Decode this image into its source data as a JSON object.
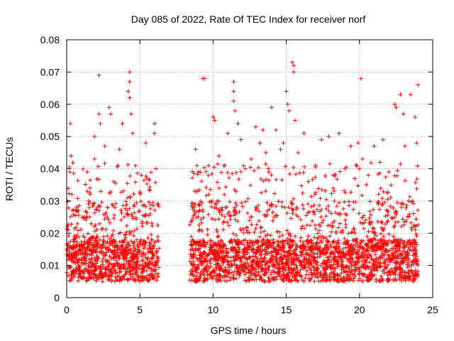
{
  "chart_data": {
    "type": "scatter",
    "title": "Day 085 of 2022, Rate Of TEC Index for receiver norf",
    "xlabel": "GPS time / hours",
    "ylabel": "ROTI / TECUs",
    "xlim": [
      0,
      25
    ],
    "ylim": [
      0,
      0.08
    ],
    "grid": true,
    "x_ticks": [
      0,
      5,
      10,
      15,
      20,
      25
    ],
    "x_tick_labels": [
      "0",
      "5",
      "10",
      "15",
      "20",
      "25"
    ],
    "y_ticks": [
      0,
      0.01,
      0.02,
      0.03,
      0.04,
      0.05,
      0.06,
      0.07,
      0.08
    ],
    "y_tick_labels": [
      "0",
      "0.01",
      "0.02",
      "0.03",
      "0.04",
      "0.05",
      "0.06",
      "0.07",
      "0.08"
    ],
    "marker": "+",
    "color": "#ff0000",
    "series": [
      {
        "name": "ROTI",
        "segments": [
          [
            0.0,
            6.3
          ],
          [
            8.4,
            24.0
          ]
        ],
        "points": [
          [
            0.1,
            0.021
          ],
          [
            0.2,
            0.039
          ],
          [
            0.25,
            0.054
          ],
          [
            0.3,
            0.044
          ],
          [
            0.35,
            0.032
          ],
          [
            1.2,
            0.025
          ],
          [
            1.4,
            0.039
          ],
          [
            1.6,
            0.034
          ],
          [
            1.9,
            0.043
          ],
          [
            1.9,
            0.05
          ],
          [
            2.2,
            0.069
          ],
          [
            2.2,
            0.057
          ],
          [
            2.3,
            0.054
          ],
          [
            2.6,
            0.047
          ],
          [
            2.9,
            0.059
          ],
          [
            3.0,
            0.057
          ],
          [
            3.2,
            0.036
          ],
          [
            3.5,
            0.041
          ],
          [
            3.6,
            0.046
          ],
          [
            3.8,
            0.054
          ],
          [
            4.2,
            0.064
          ],
          [
            4.3,
            0.07
          ],
          [
            4.3,
            0.067
          ],
          [
            4.3,
            0.062
          ],
          [
            4.4,
            0.057
          ],
          [
            4.5,
            0.051
          ],
          [
            4.7,
            0.041
          ],
          [
            5.1,
            0.038
          ],
          [
            5.4,
            0.048
          ],
          [
            6.0,
            0.054
          ],
          [
            6.0,
            0.051
          ],
          [
            6.1,
            0.04
          ],
          [
            6.2,
            0.029
          ],
          [
            8.6,
            0.028
          ],
          [
            8.8,
            0.046
          ],
          [
            8.9,
            0.041
          ],
          [
            9.3,
            0.068
          ],
          [
            9.4,
            0.068
          ],
          [
            9.7,
            0.032
          ],
          [
            10.0,
            0.056
          ],
          [
            10.1,
            0.055
          ],
          [
            10.4,
            0.044
          ],
          [
            10.8,
            0.041
          ],
          [
            11.0,
            0.051
          ],
          [
            11.4,
            0.067
          ],
          [
            11.4,
            0.064
          ],
          [
            11.4,
            0.061
          ],
          [
            11.5,
            0.058
          ],
          [
            11.7,
            0.054
          ],
          [
            11.9,
            0.049
          ],
          [
            12.2,
            0.04
          ],
          [
            12.6,
            0.043
          ],
          [
            12.9,
            0.053
          ],
          [
            13.2,
            0.048
          ],
          [
            13.4,
            0.052
          ],
          [
            13.6,
            0.045
          ],
          [
            13.8,
            0.039
          ],
          [
            14.0,
            0.059
          ],
          [
            14.3,
            0.052
          ],
          [
            14.6,
            0.046
          ],
          [
            14.8,
            0.048
          ],
          [
            15.0,
            0.064
          ],
          [
            15.1,
            0.06
          ],
          [
            15.2,
            0.058
          ],
          [
            15.4,
            0.073
          ],
          [
            15.5,
            0.072
          ],
          [
            15.5,
            0.07
          ],
          [
            15.6,
            0.055
          ],
          [
            15.8,
            0.045
          ],
          [
            16.2,
            0.051
          ],
          [
            16.5,
            0.036
          ],
          [
            17.0,
            0.041
          ],
          [
            17.4,
            0.049
          ],
          [
            17.9,
            0.05
          ],
          [
            18.2,
            0.038
          ],
          [
            18.6,
            0.051
          ],
          [
            19.0,
            0.04
          ],
          [
            19.4,
            0.047
          ],
          [
            19.9,
            0.048
          ],
          [
            20.0,
            0.04
          ],
          [
            20.1,
            0.068
          ],
          [
            20.2,
            0.043
          ],
          [
            20.6,
            0.038
          ],
          [
            21.0,
            0.047
          ],
          [
            21.4,
            0.042
          ],
          [
            21.6,
            0.049
          ],
          [
            22.0,
            0.039
          ],
          [
            22.4,
            0.06
          ],
          [
            22.5,
            0.059
          ],
          [
            22.8,
            0.063
          ],
          [
            23.0,
            0.057
          ],
          [
            23.1,
            0.047
          ],
          [
            23.5,
            0.063
          ],
          [
            23.8,
            0.056
          ],
          [
            23.9,
            0.048
          ],
          [
            24.0,
            0.066
          ]
        ],
        "typical_range": [
          0.003,
          0.03
        ]
      }
    ]
  }
}
